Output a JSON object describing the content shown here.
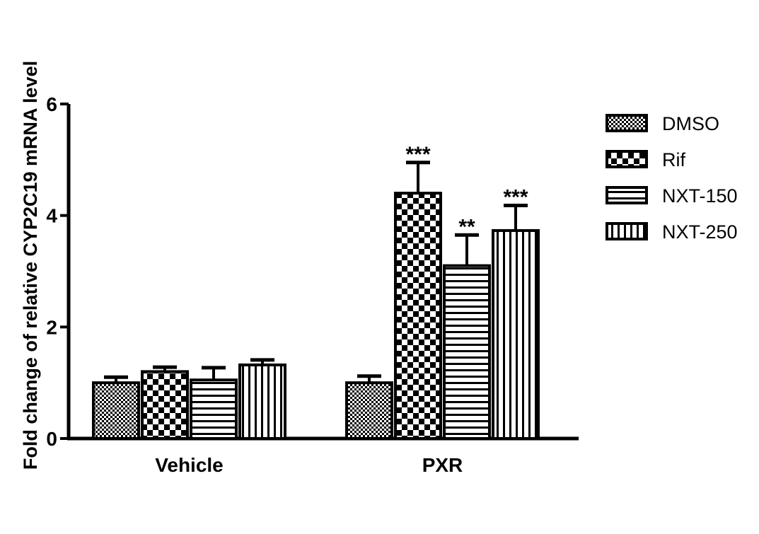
{
  "chart_data": {
    "type": "bar",
    "categories": [
      "Vehicle",
      "PXR"
    ],
    "series": [
      {
        "name": "DMSO",
        "pattern": "dots",
        "values": [
          1.0,
          1.0
        ],
        "errors": [
          0.1,
          0.12
        ],
        "significance": [
          "",
          ""
        ]
      },
      {
        "name": "Rif",
        "pattern": "checker",
        "values": [
          1.2,
          4.4
        ],
        "errors": [
          0.08,
          0.55
        ],
        "significance": [
          "",
          "***"
        ]
      },
      {
        "name": "NXT-150",
        "pattern": "hlines",
        "values": [
          1.05,
          3.1
        ],
        "errors": [
          0.22,
          0.55
        ],
        "significance": [
          "",
          "**"
        ]
      },
      {
        "name": "NXT-250",
        "pattern": "vlines",
        "values": [
          1.32,
          3.73
        ],
        "errors": [
          0.09,
          0.45
        ],
        "significance": [
          "",
          "***"
        ]
      }
    ],
    "ylabel": "Fold change of relative CYP2C19 mRNA level",
    "xlabel": "",
    "ylim": [
      0,
      6
    ],
    "yticks": [
      0,
      2,
      4,
      6
    ],
    "legend_position": "right",
    "grid": false,
    "colors": {
      "bar_stroke": "#000000",
      "fill": "#ffffff"
    }
  }
}
